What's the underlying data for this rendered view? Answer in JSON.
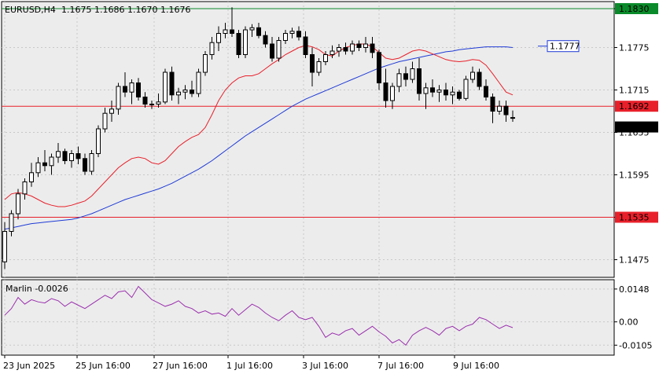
{
  "header": {
    "symbol": "EURUSD,H4",
    "ohlc": "1.1675 1.1686 1.1670 1.1676"
  },
  "indicator": {
    "label": "Marlin -0.0026"
  },
  "colors": {
    "red_line": "#e8202a",
    "green_line": "#0a8a2a",
    "blue_ma": "#1f3bd6",
    "red_ma": "#e8202a",
    "marlin": "#9b2fae",
    "grid": "#c8c8c8",
    "bg": "#ececec"
  },
  "chart_data": {
    "type": "candlestick",
    "price_axis": {
      "ticks": [
        "1.1830",
        "1.1775",
        "1.1715",
        "1.1655",
        "1.1595",
        "1.1535",
        "1.1475"
      ],
      "range": [
        1.145,
        1.184
      ]
    },
    "time_axis": {
      "ticks": [
        "23 Jun 2025",
        "25 Jun 16:00",
        "27 Jun 16:00",
        "1 Jul 16:00",
        "3 Jul 16:00",
        "7 Jul 16:00",
        "9 Jul 16:00"
      ]
    },
    "levels": [
      {
        "price": 1.183,
        "label": "1.1830",
        "style": "green"
      },
      {
        "price": 1.1692,
        "label": "1.1692",
        "style": "red"
      },
      {
        "price": 1.1535,
        "label": "1.1535",
        "style": "red"
      }
    ],
    "current_price": {
      "price": 1.1676,
      "label": "1.1676"
    },
    "target_label": {
      "price": 1.1777,
      "label": "1.1777"
    },
    "candles": [
      [
        1.1472,
        1.1528,
        1.1462,
        1.1515
      ],
      [
        1.1515,
        1.1545,
        1.1508,
        1.154
      ],
      [
        1.154,
        1.1575,
        1.1532,
        1.1568
      ],
      [
        1.1568,
        1.159,
        1.156,
        1.1585
      ],
      [
        1.1585,
        1.1612,
        1.1578,
        1.1598
      ],
      [
        1.1598,
        1.162,
        1.1592,
        1.1612
      ],
      [
        1.1612,
        1.163,
        1.16,
        1.1608
      ],
      [
        1.1608,
        1.1625,
        1.1595,
        1.162
      ],
      [
        1.162,
        1.164,
        1.1612,
        1.1628
      ],
      [
        1.1628,
        1.1632,
        1.161,
        1.1615
      ],
      [
        1.1615,
        1.163,
        1.1605,
        1.1625
      ],
      [
        1.1625,
        1.1635,
        1.161,
        1.1618
      ],
      [
        1.1618,
        1.1625,
        1.1595,
        1.16
      ],
      [
        1.16,
        1.163,
        1.1595,
        1.1625
      ],
      [
        1.1625,
        1.1665,
        1.162,
        1.166
      ],
      [
        1.166,
        1.169,
        1.1655,
        1.1682
      ],
      [
        1.1682,
        1.17,
        1.167,
        1.1688
      ],
      [
        1.1688,
        1.1725,
        1.168,
        1.172
      ],
      [
        1.172,
        1.174,
        1.1705,
        1.1712
      ],
      [
        1.1712,
        1.173,
        1.1695,
        1.1725
      ],
      [
        1.1725,
        1.1732,
        1.17,
        1.1705
      ],
      [
        1.1705,
        1.1712,
        1.169,
        1.1695
      ],
      [
        1.1695,
        1.17,
        1.1688,
        1.1695
      ],
      [
        1.1695,
        1.171,
        1.169,
        1.1698
      ],
      [
        1.1698,
        1.1745,
        1.1695,
        1.174
      ],
      [
        1.174,
        1.1748,
        1.17,
        1.1708
      ],
      [
        1.1708,
        1.1718,
        1.1695,
        1.1712
      ],
      [
        1.1712,
        1.1722,
        1.1702,
        1.1715
      ],
      [
        1.1715,
        1.1728,
        1.1705,
        1.171
      ],
      [
        1.171,
        1.1745,
        1.1705,
        1.174
      ],
      [
        1.174,
        1.177,
        1.1735,
        1.1765
      ],
      [
        1.1765,
        1.179,
        1.1758,
        1.1782
      ],
      [
        1.1782,
        1.1805,
        1.177,
        1.1795
      ],
      [
        1.1795,
        1.181,
        1.1788,
        1.18
      ],
      [
        1.18,
        1.1832,
        1.179,
        1.1795
      ],
      [
        1.1795,
        1.18,
        1.176,
        1.1765
      ],
      [
        1.1765,
        1.1805,
        1.176,
        1.18
      ],
      [
        1.18,
        1.1808,
        1.179,
        1.1803
      ],
      [
        1.1803,
        1.181,
        1.1788,
        1.1792
      ],
      [
        1.1792,
        1.1798,
        1.1775,
        1.178
      ],
      [
        1.178,
        1.179,
        1.1755,
        1.176
      ],
      [
        1.176,
        1.179,
        1.1755,
        1.1785
      ],
      [
        1.1785,
        1.18,
        1.178,
        1.1795
      ],
      [
        1.1795,
        1.1803,
        1.1788,
        1.1798
      ],
      [
        1.1798,
        1.1805,
        1.1785,
        1.179
      ],
      [
        1.179,
        1.1798,
        1.176,
        1.1765
      ],
      [
        1.1765,
        1.1775,
        1.172,
        1.174
      ],
      [
        1.174,
        1.176,
        1.1735,
        1.1755
      ],
      [
        1.1755,
        1.177,
        1.175,
        1.1765
      ],
      [
        1.1765,
        1.1778,
        1.176,
        1.177
      ],
      [
        1.177,
        1.178,
        1.1762,
        1.1775
      ],
      [
        1.1775,
        1.1782,
        1.1765,
        1.177
      ],
      [
        1.177,
        1.1785,
        1.1765,
        1.178
      ],
      [
        1.178,
        1.1785,
        1.177,
        1.1775
      ],
      [
        1.1775,
        1.179,
        1.1768,
        1.178
      ],
      [
        1.178,
        1.179,
        1.176,
        1.1768
      ],
      [
        1.1768,
        1.1772,
        1.1715,
        1.1725
      ],
      [
        1.1725,
        1.1745,
        1.169,
        1.17
      ],
      [
        1.17,
        1.1725,
        1.1688,
        1.172
      ],
      [
        1.172,
        1.1745,
        1.1712,
        1.1738
      ],
      [
        1.1738,
        1.1748,
        1.172,
        1.173
      ],
      [
        1.173,
        1.1755,
        1.1725,
        1.1745
      ],
      [
        1.1745,
        1.176,
        1.17,
        1.171
      ],
      [
        1.171,
        1.1725,
        1.1688,
        1.1718
      ],
      [
        1.1718,
        1.173,
        1.1705,
        1.1712
      ],
      [
        1.1712,
        1.1722,
        1.1698,
        1.1715
      ],
      [
        1.1715,
        1.1725,
        1.17,
        1.1708
      ],
      [
        1.1708,
        1.172,
        1.1695,
        1.1712
      ],
      [
        1.1712,
        1.1715,
        1.17,
        1.1703
      ],
      [
        1.1703,
        1.1735,
        1.17,
        1.173
      ],
      [
        1.173,
        1.1748,
        1.1725,
        1.174
      ],
      [
        1.174,
        1.1745,
        1.1715,
        1.172
      ],
      [
        1.172,
        1.173,
        1.17,
        1.1705
      ],
      [
        1.1705,
        1.171,
        1.1668,
        1.1685
      ],
      [
        1.1685,
        1.17,
        1.168,
        1.1692
      ],
      [
        1.1692,
        1.17,
        1.167,
        1.168
      ],
      [
        1.1675,
        1.1686,
        1.167,
        1.1676
      ]
    ],
    "red_ma": [
      1.156,
      1.1568,
      1.157,
      1.1568,
      1.1565,
      1.156,
      1.1555,
      1.1552,
      1.155,
      1.155,
      1.1552,
      1.1555,
      1.1558,
      1.1565,
      1.1575,
      1.1585,
      1.1595,
      1.1605,
      1.1612,
      1.1618,
      1.162,
      1.1618,
      1.1612,
      1.161,
      1.1615,
      1.1625,
      1.1635,
      1.1642,
      1.1648,
      1.1652,
      1.1662,
      1.168,
      1.17,
      1.1715,
      1.1725,
      1.1732,
      1.1735,
      1.1735,
      1.1738,
      1.1745,
      1.1752,
      1.1758,
      1.1765,
      1.177,
      1.1775,
      1.1778,
      1.1776,
      1.1772,
      1.1765,
      1.1763,
      1.177,
      1.1775,
      1.1778,
      1.178,
      1.178,
      1.1776,
      1.1768,
      1.176,
      1.1758,
      1.176,
      1.1765,
      1.177,
      1.1772,
      1.177,
      1.1766,
      1.1762,
      1.1758,
      1.1756,
      1.1755,
      1.1756,
      1.1758,
      1.1757,
      1.175,
      1.1738,
      1.1725,
      1.1712,
      1.1708
    ],
    "blue_ma": [
      1.1518,
      1.152,
      1.1522,
      1.1524,
      1.1526,
      1.1527,
      1.1528,
      1.1529,
      1.153,
      1.1531,
      1.1532,
      1.1534,
      1.1537,
      1.154,
      1.1544,
      1.1548,
      1.1552,
      1.1556,
      1.156,
      1.1563,
      1.1566,
      1.1569,
      1.1572,
      1.1575,
      1.1579,
      1.1583,
      1.1588,
      1.1593,
      1.1598,
      1.1603,
      1.1609,
      1.1615,
      1.1622,
      1.1629,
      1.1636,
      1.1643,
      1.165,
      1.1656,
      1.1662,
      1.1668,
      1.1674,
      1.168,
      1.1686,
      1.1692,
      1.1697,
      1.1702,
      1.1706,
      1.171,
      1.1714,
      1.1718,
      1.1722,
      1.1726,
      1.173,
      1.1734,
      1.1738,
      1.1742,
      1.1746,
      1.1749,
      1.1752,
      1.1755,
      1.1757,
      1.1759,
      1.1761,
      1.1763,
      1.1765,
      1.1767,
      1.1769,
      1.177,
      1.1772,
      1.1773,
      1.1774,
      1.1775,
      1.1776,
      1.1776,
      1.1776,
      1.1776,
      1.1775
    ],
    "marlin": {
      "ticks": [
        "0.0148",
        "0.00",
        "-0.0105"
      ],
      "range": [
        -0.015,
        0.019
      ],
      "values": [
        0.003,
        0.006,
        0.011,
        0.008,
        0.01,
        0.009,
        0.0085,
        0.0105,
        0.0095,
        0.007,
        0.009,
        0.0075,
        0.006,
        0.008,
        0.01,
        0.012,
        0.0105,
        0.0135,
        0.014,
        0.011,
        0.016,
        0.013,
        0.01,
        0.0085,
        0.007,
        0.008,
        0.0095,
        0.007,
        0.006,
        0.004,
        0.005,
        0.0035,
        0.004,
        0.0025,
        0.006,
        0.003,
        0.0055,
        0.008,
        0.0065,
        0.004,
        0.002,
        0.0005,
        0.003,
        0.005,
        0.002,
        0.001,
        0.002,
        -0.002,
        -0.007,
        -0.005,
        -0.006,
        -0.004,
        -0.003,
        -0.006,
        -0.004,
        -0.002,
        -0.0045,
        -0.0065,
        -0.0095,
        -0.008,
        -0.0105,
        -0.006,
        -0.004,
        -0.0025,
        -0.004,
        -0.006,
        -0.003,
        -0.002,
        -0.004,
        -0.002,
        -0.001,
        0.002,
        0.001,
        -0.001,
        -0.003,
        -0.0015,
        -0.0026
      ]
    }
  }
}
